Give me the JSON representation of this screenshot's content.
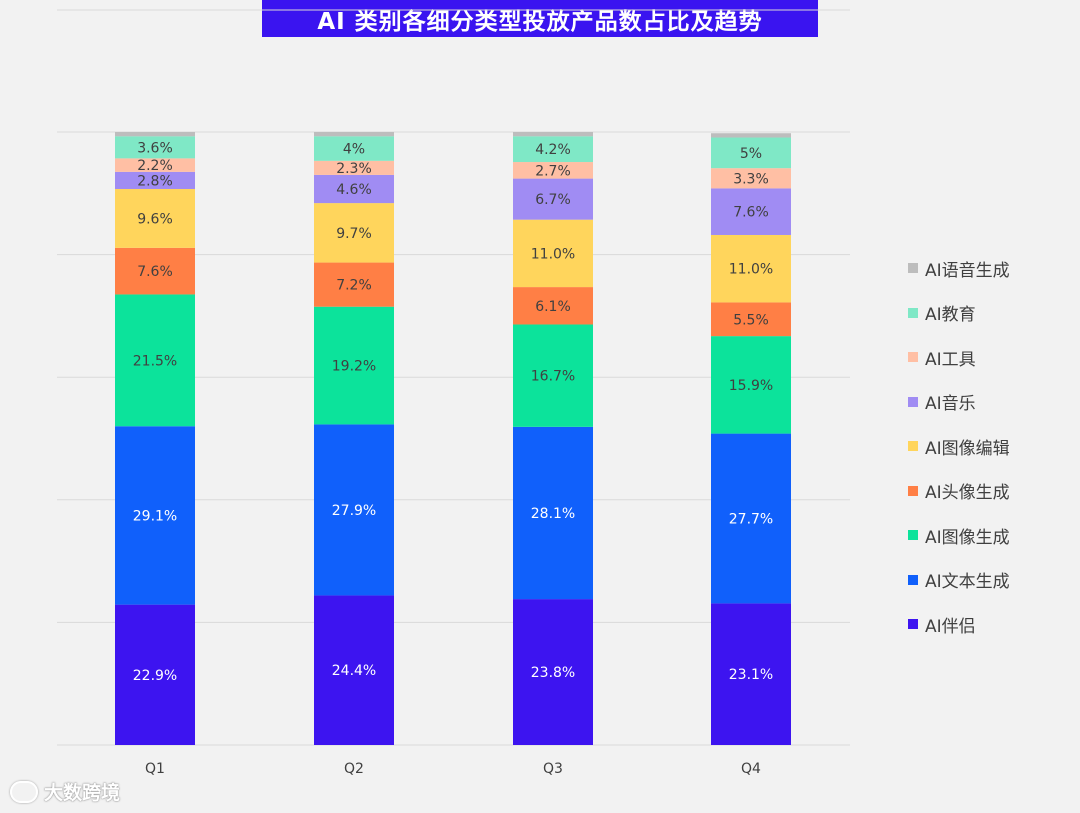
{
  "title": "AI 类别各细分类型投放产品数占比及趋势",
  "watermark": "大数跨境",
  "chart_data": {
    "type": "bar",
    "stacked": true,
    "categories": [
      "Q1",
      "Q2",
      "Q3",
      "Q4"
    ],
    "series": [
      {
        "name": "AI伴侣",
        "color": "#3d14f0",
        "values": [
          22.9,
          24.4,
          23.8,
          23.1
        ],
        "labels": [
          "22.9%",
          "24.4%",
          "23.8%",
          "23.1%"
        ]
      },
      {
        "name": "AI文本生成",
        "color": "#1060fb",
        "values": [
          29.1,
          27.9,
          28.1,
          27.7
        ],
        "labels": [
          "29.1%",
          "27.9%",
          "28.1%",
          "27.7%"
        ]
      },
      {
        "name": "AI图像生成",
        "color": "#0ce39b",
        "values": [
          21.5,
          19.2,
          16.7,
          15.9
        ],
        "labels": [
          "21.5%",
          "19.2%",
          "16.7%",
          "15.9%"
        ]
      },
      {
        "name": "AI头像生成",
        "color": "#ff7f45",
        "values": [
          7.6,
          7.2,
          6.1,
          5.5
        ],
        "labels": [
          "7.6%",
          "7.2%",
          "6.1%",
          "5.5%"
        ]
      },
      {
        "name": "AI图像编辑",
        "color": "#ffd55c",
        "values": [
          9.6,
          9.7,
          11.0,
          11.0
        ],
        "labels": [
          "9.6%",
          "9.7%",
          "11.0%",
          "11.0%"
        ]
      },
      {
        "name": "AI音乐",
        "color": "#a08cf3",
        "values": [
          2.8,
          4.6,
          6.7,
          7.6
        ],
        "labels": [
          "2.8%",
          "4.6%",
          "6.7%",
          "7.6%"
        ]
      },
      {
        "name": "AI工具",
        "color": "#ffbfa4",
        "values": [
          2.2,
          2.3,
          2.7,
          3.3
        ],
        "labels": [
          "2.2%",
          "2.3%",
          "2.7%",
          "3.3%"
        ]
      },
      {
        "name": "AI教育",
        "color": "#7fe8c6",
        "values": [
          3.6,
          4,
          4.2,
          5
        ],
        "labels": [
          "3.6%",
          "4%",
          "4.2%",
          "5%"
        ]
      },
      {
        "name": "AI语音生成",
        "color": "#bdbdbd",
        "values": [
          0.7,
          0.7,
          0.7,
          0.7
        ],
        "labels": [
          "",
          "",
          "",
          ""
        ]
      }
    ],
    "ylim": [
      0,
      100
    ],
    "grid": true,
    "legend_position": "right",
    "legend_order": [
      "AI语音生成",
      "AI教育",
      "AI工具",
      "AI音乐",
      "AI图像编辑",
      "AI头像生成",
      "AI图像生成",
      "AI文本生成",
      "AI伴侣"
    ]
  }
}
